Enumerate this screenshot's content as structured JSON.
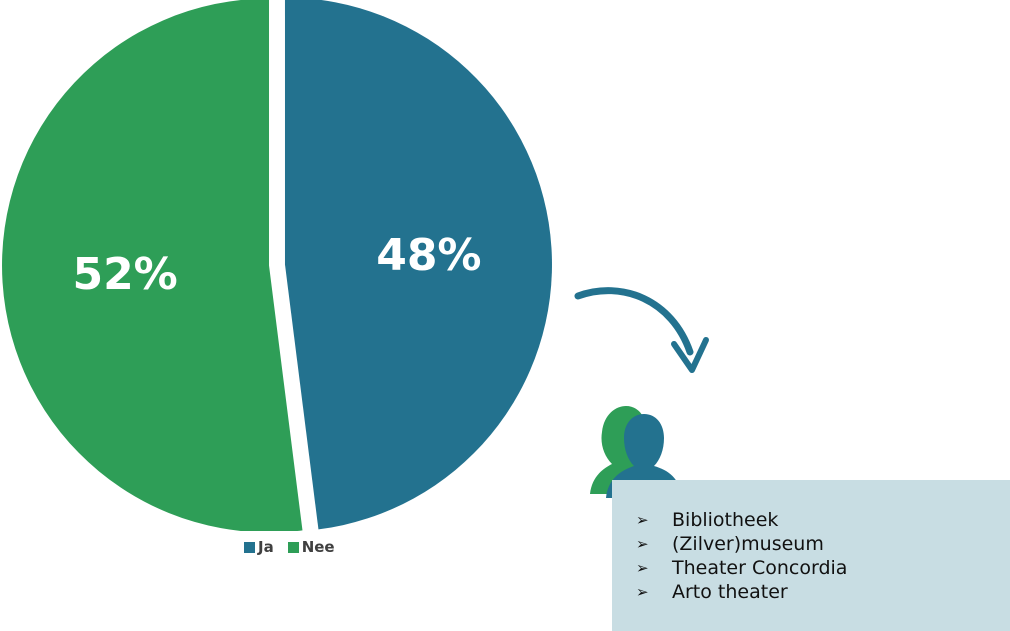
{
  "chart_data": {
    "type": "pie",
    "slices": [
      {
        "label": "Ja",
        "value": 48,
        "display": "48%",
        "color": "#23728f"
      },
      {
        "label": "Nee",
        "value": 52,
        "display": "52%",
        "color": "#2e9e57"
      }
    ],
    "legend": {
      "placement": "bottom",
      "entries": [
        "Ja",
        "Nee"
      ]
    }
  },
  "legend": {
    "ja_label": "Ja",
    "nee_label": "Nee"
  },
  "venues": {
    "bullet_icon": "arrowhead-bullet-icon",
    "bullet_glyph": "➢",
    "items": [
      "Bibliotheek",
      "(Zilver)museum",
      "Theater Concordia",
      "Arto theater"
    ]
  },
  "icons": {
    "arrow": "curved-arrow-icon",
    "people": "people-silhouette-icon"
  },
  "colors": {
    "ja": "#23728f",
    "nee": "#2e9e57",
    "box": "#c8dde3"
  }
}
